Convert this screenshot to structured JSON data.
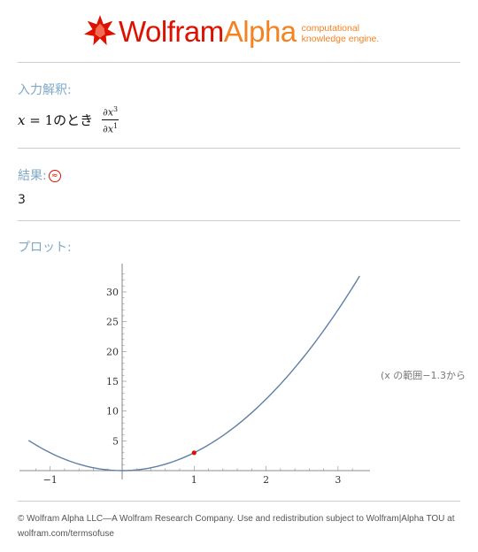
{
  "header": {
    "logo_wolfram": "Wolfram",
    "logo_alpha": "Alpha",
    "tagline_line1": "computational",
    "tagline_line2": "knowledge engine."
  },
  "input_section": {
    "label": "入力解釈:",
    "expression_condition": "x = 1のとき",
    "derivative_numerator": "∂x",
    "numerator_exponent": "3",
    "derivative_denominator": "∂x",
    "denominator_exponent": "1"
  },
  "result_section": {
    "label": "結果:",
    "badge_icon": "approximate-result-icon",
    "value": "3"
  },
  "plot_section": {
    "label": "プロット:",
    "range_note": "(x の範囲−1.3から"
  },
  "chart_data": {
    "type": "line",
    "function": "x^3 / 3... shown as curve",
    "x_range": [
      -1.3,
      3.3
    ],
    "xlim": [
      -1.3,
      3.3
    ],
    "ylim": [
      0,
      33
    ],
    "xticks": [
      -1,
      1,
      2,
      3
    ],
    "xtick_labels": [
      "−1",
      "1",
      "2",
      "3"
    ],
    "yticks": [
      5,
      10,
      15,
      20,
      25,
      30
    ],
    "ytick_labels": [
      "5",
      "10",
      "15",
      "20",
      "25",
      "30"
    ],
    "series": [
      {
        "x": [
          -1.3,
          -1.0,
          -0.6,
          -0.3,
          0.0,
          0.3,
          0.6,
          1.0,
          1.5,
          2.0,
          2.5,
          3.0,
          3.3
        ],
        "y": [
          5.07,
          3.0,
          1.08,
          0.27,
          0.0,
          0.27,
          1.08,
          3.0,
          6.75,
          12.0,
          18.75,
          27.0,
          32.67
        ]
      }
    ],
    "highlight_point": {
      "x": 1,
      "y": 3
    },
    "colors": {
      "curve": "#5f7fa6",
      "point": "#dd1100"
    },
    "grid": false
  },
  "footer": {
    "text": "© Wolfram Alpha LLC—A Wolfram Research Company. Use and redistribution subject to Wolfram|Alpha TOU at wolfram.com/termsofuse"
  }
}
